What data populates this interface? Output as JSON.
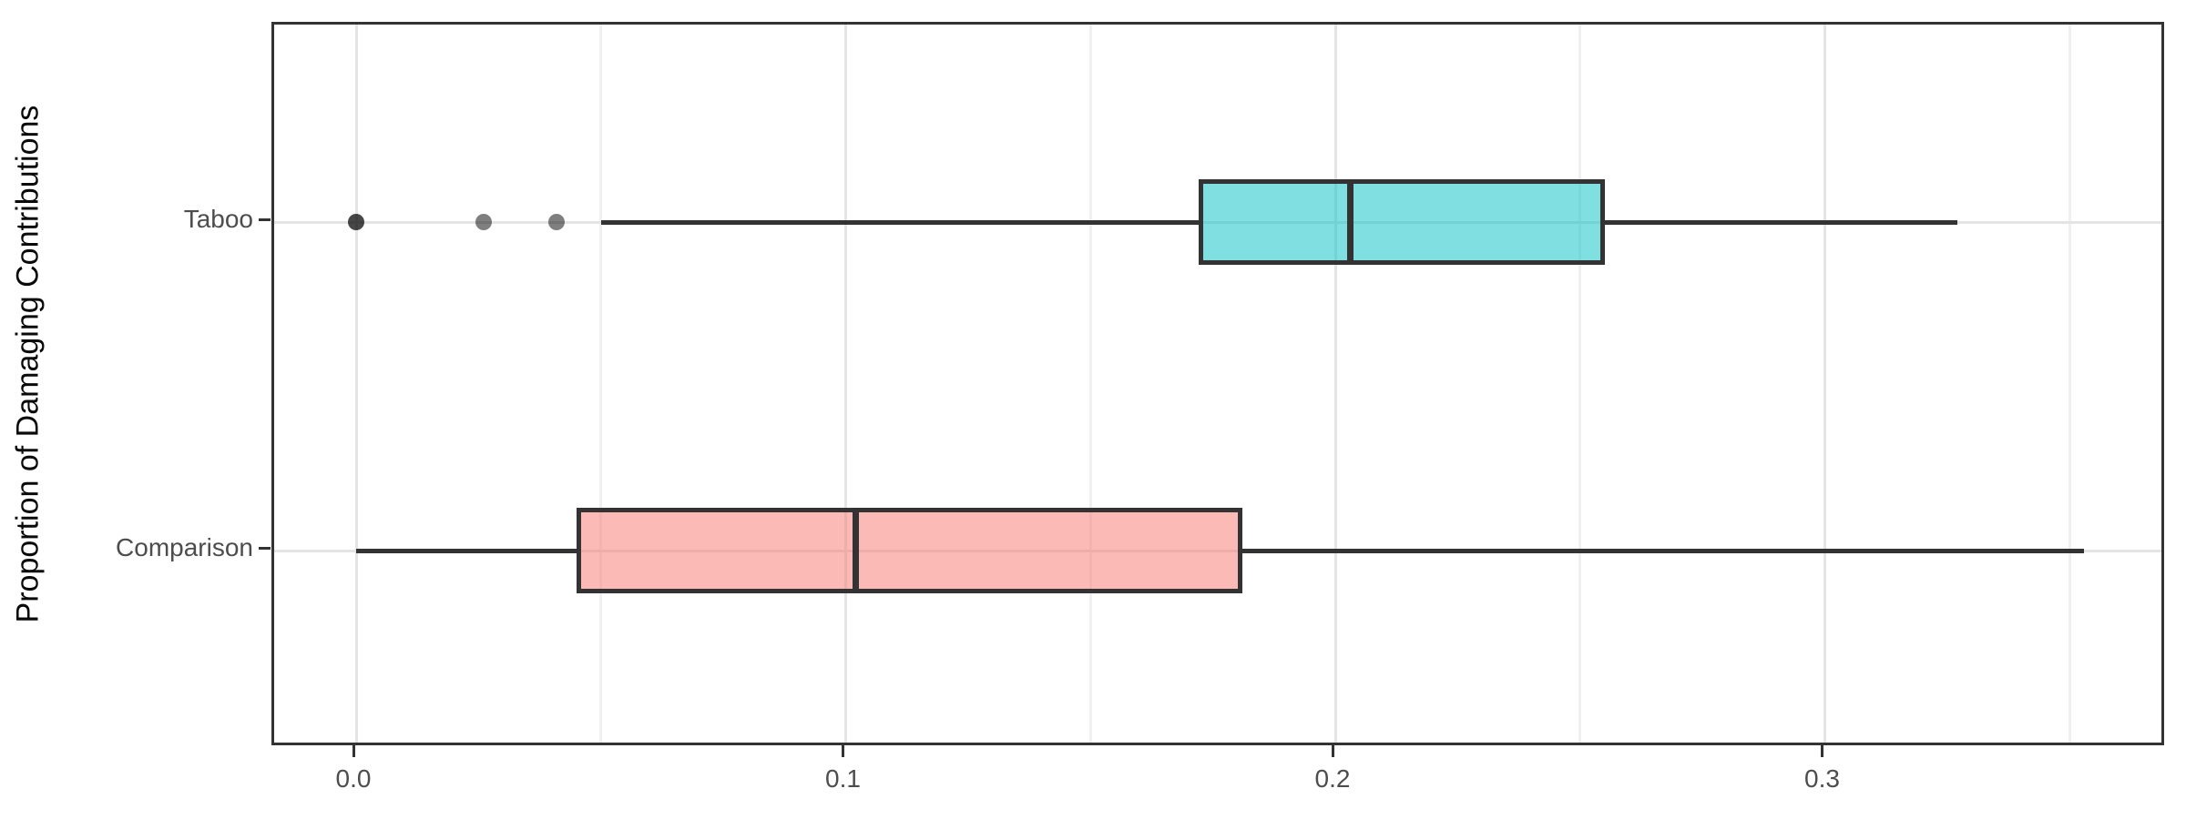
{
  "figure": {
    "background": "#FFFFFF",
    "panel_border_color": "#333333",
    "grid_major_color": "#E4E4E4",
    "grid_minor_color": "#F0F0F0",
    "axis_line_color": "#333333",
    "tick_label_color": "#4D4D4D",
    "axis_title_color": "#0A0A0A"
  },
  "chart_data": {
    "type": "boxplot",
    "orientation": "horizontal",
    "title": "",
    "xlabel": "",
    "ylabel": "Proportion of Damaging Contributions",
    "grid": true,
    "legend": false,
    "xlim": [
      -0.017,
      0.37
    ],
    "x_tick_labels": [
      "0.0",
      "0.1",
      "0.2",
      "0.3"
    ],
    "x_tick_values": [
      0.0,
      0.1,
      0.2,
      0.3
    ],
    "x_minor_tick_values": [
      0.05,
      0.15,
      0.25,
      0.35
    ],
    "categories": [
      "Taboo",
      "Comparison"
    ],
    "series": [
      {
        "name": "Taboo",
        "whisker_low": 0.05,
        "q1": 0.172,
        "median": 0.203,
        "q3": 0.255,
        "whisker_high": 0.327,
        "outliers": [
          0.0,
          0.026,
          0.041
        ],
        "outlier_alphas": [
          0.72,
          0.5,
          0.5
        ],
        "fill_rgba": "rgba(0,191,196,0.5)",
        "base_color": "#00BFC4",
        "stroke": "#333333"
      },
      {
        "name": "Comparison",
        "whisker_low": 0.0,
        "q1": 0.045,
        "median": 0.102,
        "q3": 0.181,
        "whisker_high": 0.353,
        "outliers": [],
        "outlier_alphas": [],
        "fill_rgba": "rgba(248,118,109,0.5)",
        "base_color": "#F8766D",
        "stroke": "#333333"
      }
    ]
  }
}
